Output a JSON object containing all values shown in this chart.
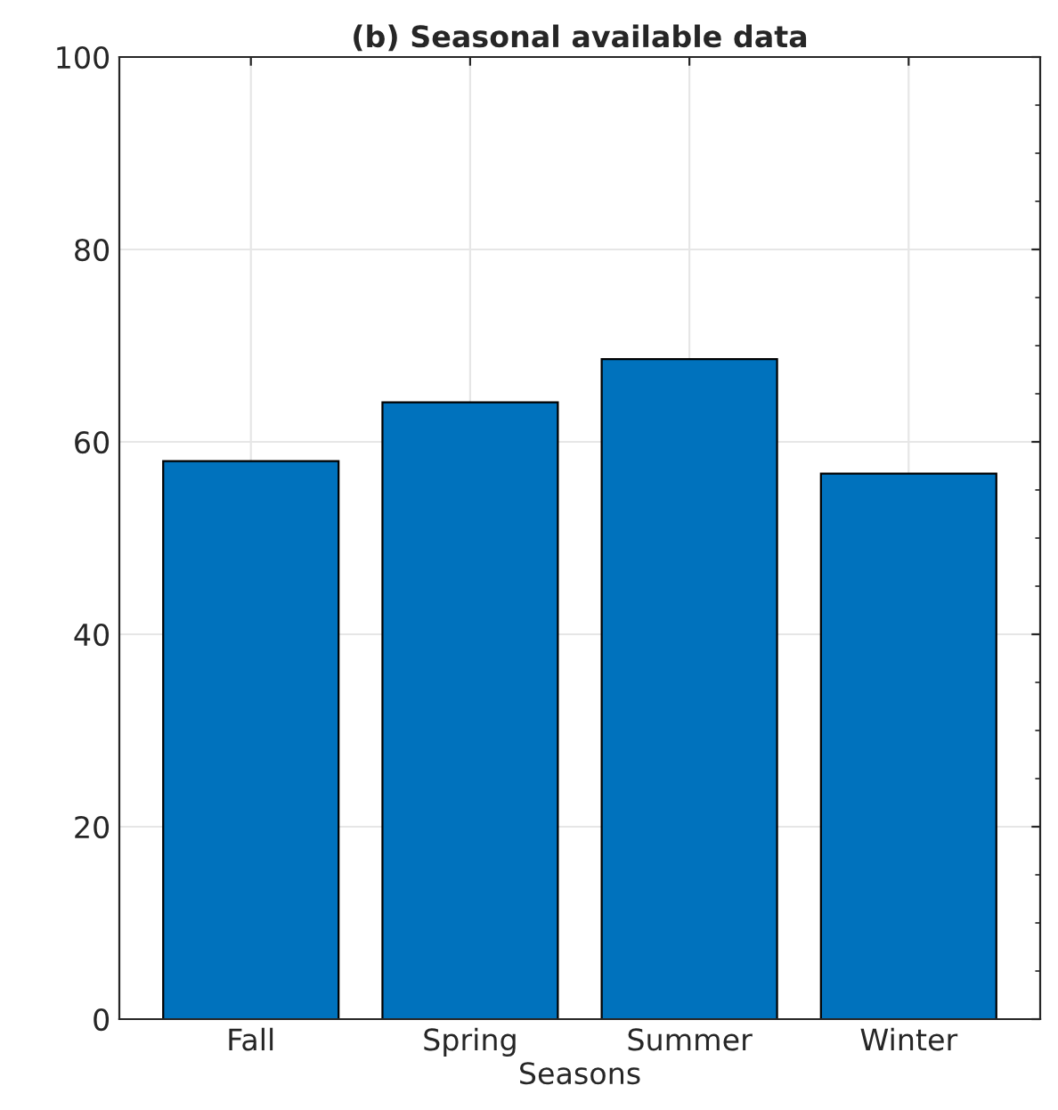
{
  "chart_data": {
    "type": "bar",
    "title": "(b) Seasonal available data",
    "xlabel": "Seasons",
    "categories": [
      "Fall",
      "Spring",
      "Summer",
      "Winter"
    ],
    "values": [
      58.0,
      64.1,
      68.6,
      56.7
    ],
    "color": "#0072bd",
    "ylim": [
      0,
      100
    ],
    "yticks": [
      0,
      20,
      40,
      60,
      80,
      100
    ],
    "grid": true
  }
}
